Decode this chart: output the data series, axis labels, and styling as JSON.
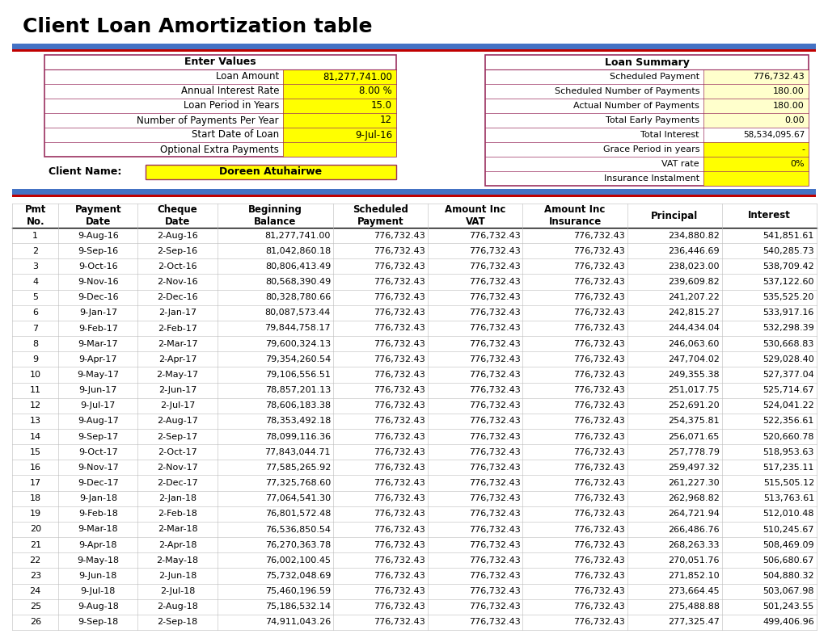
{
  "title": "Client Loan Amortization table",
  "enter_values_label": "Enter Values",
  "enter_values": [
    [
      "Loan Amount",
      "81,277,741.00"
    ],
    [
      "Annual Interest Rate",
      "8.00 %"
    ],
    [
      "Loan Period in Years",
      "15.0"
    ],
    [
      "Number of Payments Per Year",
      "12"
    ],
    [
      "Start Date of Loan",
      "9-Jul-16"
    ],
    [
      "Optional Extra Payments",
      ""
    ]
  ],
  "client_name_label": "Client Name:",
  "client_name": "Doreen Atuhairwe",
  "loan_summary_label": "Loan Summary",
  "loan_summary": [
    [
      "Scheduled Payment",
      "776,732.43"
    ],
    [
      "Scheduled Number of Payments",
      "180.00"
    ],
    [
      "Actual Number of Payments",
      "180.00"
    ],
    [
      "Total Early Payments",
      "0.00"
    ],
    [
      "Total Interest",
      "58,534,095.67"
    ],
    [
      "Grace Period in years",
      "-"
    ],
    [
      "VAT rate",
      "0%"
    ],
    [
      "Insurance Instalment",
      ""
    ]
  ],
  "table_headers": [
    "Pmt\nNo.",
    "Payment\nDate",
    "Cheque\nDate",
    "Beginning\nBalance",
    "Scheduled\nPayment",
    "Amount Inc\nVAT",
    "Amount Inc\nInsurance",
    "Principal",
    "Interest"
  ],
  "table_data": [
    [
      "1",
      "9-Aug-16",
      "2-Aug-16",
      "81,277,741.00",
      "776,732.43",
      "776,732.43",
      "776,732.43",
      "234,880.82",
      "541,851.61"
    ],
    [
      "2",
      "9-Sep-16",
      "2-Sep-16",
      "81,042,860.18",
      "776,732.43",
      "776,732.43",
      "776,732.43",
      "236,446.69",
      "540,285.73"
    ],
    [
      "3",
      "9-Oct-16",
      "2-Oct-16",
      "80,806,413.49",
      "776,732.43",
      "776,732.43",
      "776,732.43",
      "238,023.00",
      "538,709.42"
    ],
    [
      "4",
      "9-Nov-16",
      "2-Nov-16",
      "80,568,390.49",
      "776,732.43",
      "776,732.43",
      "776,732.43",
      "239,609.82",
      "537,122.60"
    ],
    [
      "5",
      "9-Dec-16",
      "2-Dec-16",
      "80,328,780.66",
      "776,732.43",
      "776,732.43",
      "776,732.43",
      "241,207.22",
      "535,525.20"
    ],
    [
      "6",
      "9-Jan-17",
      "2-Jan-17",
      "80,087,573.44",
      "776,732.43",
      "776,732.43",
      "776,732.43",
      "242,815.27",
      "533,917.16"
    ],
    [
      "7",
      "9-Feb-17",
      "2-Feb-17",
      "79,844,758.17",
      "776,732.43",
      "776,732.43",
      "776,732.43",
      "244,434.04",
      "532,298.39"
    ],
    [
      "8",
      "9-Mar-17",
      "2-Mar-17",
      "79,600,324.13",
      "776,732.43",
      "776,732.43",
      "776,732.43",
      "246,063.60",
      "530,668.83"
    ],
    [
      "9",
      "9-Apr-17",
      "2-Apr-17",
      "79,354,260.54",
      "776,732.43",
      "776,732.43",
      "776,732.43",
      "247,704.02",
      "529,028.40"
    ],
    [
      "10",
      "9-May-17",
      "2-May-17",
      "79,106,556.51",
      "776,732.43",
      "776,732.43",
      "776,732.43",
      "249,355.38",
      "527,377.04"
    ],
    [
      "11",
      "9-Jun-17",
      "2-Jun-17",
      "78,857,201.13",
      "776,732.43",
      "776,732.43",
      "776,732.43",
      "251,017.75",
      "525,714.67"
    ],
    [
      "12",
      "9-Jul-17",
      "2-Jul-17",
      "78,606,183.38",
      "776,732.43",
      "776,732.43",
      "776,732.43",
      "252,691.20",
      "524,041.22"
    ],
    [
      "13",
      "9-Aug-17",
      "2-Aug-17",
      "78,353,492.18",
      "776,732.43",
      "776,732.43",
      "776,732.43",
      "254,375.81",
      "522,356.61"
    ],
    [
      "14",
      "9-Sep-17",
      "2-Sep-17",
      "78,099,116.36",
      "776,732.43",
      "776,732.43",
      "776,732.43",
      "256,071.65",
      "520,660.78"
    ],
    [
      "15",
      "9-Oct-17",
      "2-Oct-17",
      "77,843,044.71",
      "776,732.43",
      "776,732.43",
      "776,732.43",
      "257,778.79",
      "518,953.63"
    ],
    [
      "16",
      "9-Nov-17",
      "2-Nov-17",
      "77,585,265.92",
      "776,732.43",
      "776,732.43",
      "776,732.43",
      "259,497.32",
      "517,235.11"
    ],
    [
      "17",
      "9-Dec-17",
      "2-Dec-17",
      "77,325,768.60",
      "776,732.43",
      "776,732.43",
      "776,732.43",
      "261,227.30",
      "515,505.12"
    ],
    [
      "18",
      "9-Jan-18",
      "2-Jan-18",
      "77,064,541.30",
      "776,732.43",
      "776,732.43",
      "776,732.43",
      "262,968.82",
      "513,763.61"
    ],
    [
      "19",
      "9-Feb-18",
      "2-Feb-18",
      "76,801,572.48",
      "776,732.43",
      "776,732.43",
      "776,732.43",
      "264,721.94",
      "512,010.48"
    ],
    [
      "20",
      "9-Mar-18",
      "2-Mar-18",
      "76,536,850.54",
      "776,732.43",
      "776,732.43",
      "776,732.43",
      "266,486.76",
      "510,245.67"
    ],
    [
      "21",
      "9-Apr-18",
      "2-Apr-18",
      "76,270,363.78",
      "776,732.43",
      "776,732.43",
      "776,732.43",
      "268,263.33",
      "508,469.09"
    ],
    [
      "22",
      "9-May-18",
      "2-May-18",
      "76,002,100.45",
      "776,732.43",
      "776,732.43",
      "776,732.43",
      "270,051.76",
      "506,680.67"
    ],
    [
      "23",
      "9-Jun-18",
      "2-Jun-18",
      "75,732,048.69",
      "776,732.43",
      "776,732.43",
      "776,732.43",
      "271,852.10",
      "504,880.32"
    ],
    [
      "24",
      "9-Jul-18",
      "2-Jul-18",
      "75,460,196.59",
      "776,732.43",
      "776,732.43",
      "776,732.43",
      "273,664.45",
      "503,067.98"
    ],
    [
      "25",
      "9-Aug-18",
      "2-Aug-18",
      "75,186,532.14",
      "776,732.43",
      "776,732.43",
      "776,732.43",
      "275,488.88",
      "501,243.55"
    ],
    [
      "26",
      "9-Sep-18",
      "2-Sep-18",
      "74,911,043.26",
      "776,732.43",
      "776,732.43",
      "776,732.43",
      "277,325.47",
      "499,406.96"
    ]
  ],
  "yellow_bg": "#FFFF00",
  "lightyellow_bg": "#FFFFCC",
  "white_bg": "#FFFFFF",
  "border_maroon": "#9B3060",
  "sep_blue": "#4472C4",
  "sep_red": "#C00000",
  "title_fontsize": 18,
  "cell_fontsize": 8,
  "header_fontsize": 8.5
}
